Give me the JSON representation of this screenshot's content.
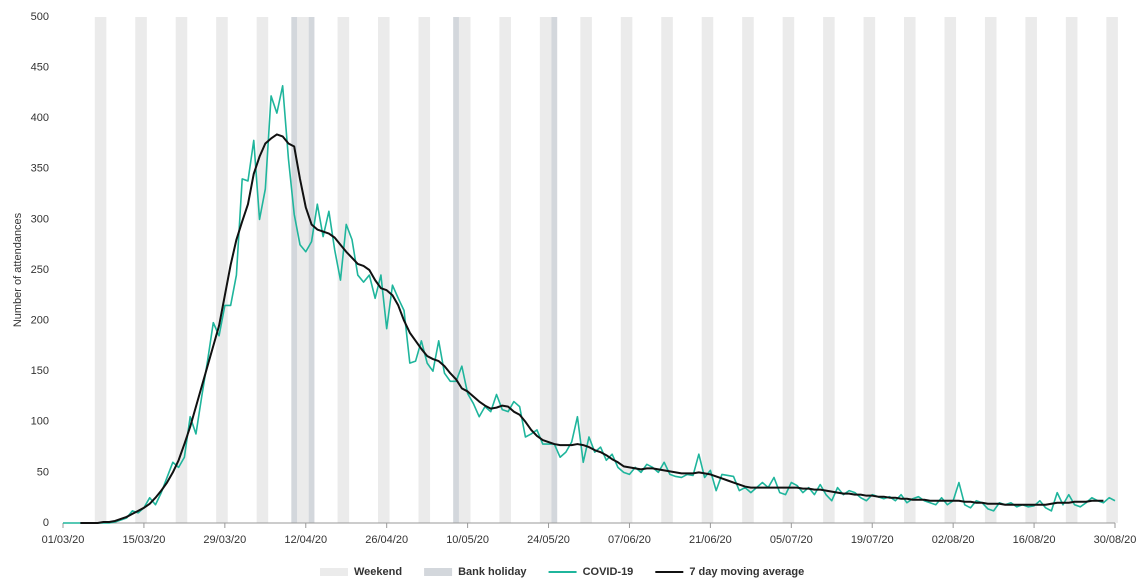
{
  "chart_data": {
    "type": "line",
    "y_label": "Number of attendances",
    "x": [
      "2020-03-01",
      "2020-03-02",
      "2020-03-03",
      "2020-03-04",
      "2020-03-05",
      "2020-03-06",
      "2020-03-07",
      "2020-03-08",
      "2020-03-09",
      "2020-03-10",
      "2020-03-11",
      "2020-03-12",
      "2020-03-13",
      "2020-03-14",
      "2020-03-15",
      "2020-03-16",
      "2020-03-17",
      "2020-03-18",
      "2020-03-19",
      "2020-03-20",
      "2020-03-21",
      "2020-03-22",
      "2020-03-23",
      "2020-03-24",
      "2020-03-25",
      "2020-03-26",
      "2020-03-27",
      "2020-03-28",
      "2020-03-29",
      "2020-03-30",
      "2020-03-31",
      "2020-04-01",
      "2020-04-02",
      "2020-04-03",
      "2020-04-04",
      "2020-04-05",
      "2020-04-06",
      "2020-04-07",
      "2020-04-08",
      "2020-04-09",
      "2020-04-10",
      "2020-04-11",
      "2020-04-12",
      "2020-04-13",
      "2020-04-14",
      "2020-04-15",
      "2020-04-16",
      "2020-04-17",
      "2020-04-18",
      "2020-04-19",
      "2020-04-20",
      "2020-04-21",
      "2020-04-22",
      "2020-04-23",
      "2020-04-24",
      "2020-04-25",
      "2020-04-26",
      "2020-04-27",
      "2020-04-28",
      "2020-04-29",
      "2020-04-30",
      "2020-05-01",
      "2020-05-02",
      "2020-05-03",
      "2020-05-04",
      "2020-05-05",
      "2020-05-06",
      "2020-05-07",
      "2020-05-08",
      "2020-05-09",
      "2020-05-10",
      "2020-05-11",
      "2020-05-12",
      "2020-05-13",
      "2020-05-14",
      "2020-05-15",
      "2020-05-16",
      "2020-05-17",
      "2020-05-18",
      "2020-05-19",
      "2020-05-20",
      "2020-05-21",
      "2020-05-22",
      "2020-05-23",
      "2020-05-24",
      "2020-05-25",
      "2020-05-26",
      "2020-05-27",
      "2020-05-28",
      "2020-05-29",
      "2020-05-30",
      "2020-05-31",
      "2020-06-01",
      "2020-06-02",
      "2020-06-03",
      "2020-06-04",
      "2020-06-05",
      "2020-06-06",
      "2020-06-07",
      "2020-06-08",
      "2020-06-09",
      "2020-06-10",
      "2020-06-11",
      "2020-06-12",
      "2020-06-13",
      "2020-06-14",
      "2020-06-15",
      "2020-06-16",
      "2020-06-17",
      "2020-06-18",
      "2020-06-19",
      "2020-06-20",
      "2020-06-21",
      "2020-06-22",
      "2020-06-23",
      "2020-06-24",
      "2020-06-25",
      "2020-06-26",
      "2020-06-27",
      "2020-06-28",
      "2020-06-29",
      "2020-06-30",
      "2020-07-01",
      "2020-07-02",
      "2020-07-03",
      "2020-07-04",
      "2020-07-05",
      "2020-07-06",
      "2020-07-07",
      "2020-07-08",
      "2020-07-09",
      "2020-07-10",
      "2020-07-11",
      "2020-07-12",
      "2020-07-13",
      "2020-07-14",
      "2020-07-15",
      "2020-07-16",
      "2020-07-17",
      "2020-07-18",
      "2020-07-19",
      "2020-07-20",
      "2020-07-21",
      "2020-07-22",
      "2020-07-23",
      "2020-07-24",
      "2020-07-25",
      "2020-07-26",
      "2020-07-27",
      "2020-07-28",
      "2020-07-29",
      "2020-07-30",
      "2020-07-31",
      "2020-08-01",
      "2020-08-02",
      "2020-08-03",
      "2020-08-04",
      "2020-08-05",
      "2020-08-06",
      "2020-08-07",
      "2020-08-08",
      "2020-08-09",
      "2020-08-10",
      "2020-08-11",
      "2020-08-12",
      "2020-08-13",
      "2020-08-14",
      "2020-08-15",
      "2020-08-16",
      "2020-08-17",
      "2020-08-18",
      "2020-08-19",
      "2020-08-20",
      "2020-08-21",
      "2020-08-22",
      "2020-08-23",
      "2020-08-24",
      "2020-08-25",
      "2020-08-26",
      "2020-08-27",
      "2020-08-28",
      "2020-08-29",
      "2020-08-30"
    ],
    "series": [
      {
        "name": "COVID-19",
        "color": "#1fb59c",
        "values": [
          0,
          0,
          0,
          0,
          0,
          0,
          0,
          0,
          0,
          1,
          3,
          5,
          12,
          10,
          15,
          25,
          18,
          30,
          45,
          60,
          55,
          65,
          105,
          88,
          125,
          160,
          198,
          185,
          215,
          215,
          245,
          340,
          338,
          378,
          300,
          330,
          422,
          405,
          432,
          360,
          305,
          275,
          268,
          278,
          315,
          283,
          308,
          270,
          240,
          295,
          280,
          245,
          238,
          245,
          222,
          245,
          192,
          235,
          222,
          210,
          158,
          160,
          180,
          158,
          150,
          180,
          148,
          140,
          140,
          155,
          128,
          118,
          105,
          115,
          110,
          127,
          112,
          110,
          120,
          115,
          85,
          88,
          92,
          78,
          78,
          78,
          65,
          70,
          80,
          105,
          60,
          85,
          70,
          75,
          62,
          68,
          55,
          50,
          48,
          55,
          50,
          58,
          55,
          50,
          60,
          48,
          46,
          45,
          48,
          47,
          68,
          45,
          52,
          32,
          48,
          47,
          46,
          32,
          35,
          30,
          35,
          40,
          35,
          45,
          30,
          28,
          40,
          37,
          30,
          35,
          28,
          38,
          28,
          22,
          35,
          28,
          32,
          30,
          25,
          22,
          28,
          26,
          24,
          26,
          22,
          28,
          20,
          24,
          26,
          22,
          20,
          18,
          25,
          18,
          22,
          40,
          18,
          15,
          22,
          20,
          14,
          12,
          20,
          18,
          20,
          16,
          18,
          16,
          17,
          22,
          15,
          12,
          30,
          18,
          28,
          18,
          16,
          20,
          25,
          22,
          20,
          25,
          22
        ]
      },
      {
        "name": "7 day moving average",
        "color": "#111111",
        "values": [
          null,
          null,
          null,
          0,
          0,
          0,
          0,
          1,
          1,
          2,
          4,
          6,
          9,
          12,
          15,
          19,
          25,
          32,
          40,
          50,
          62,
          78,
          95,
          115,
          135,
          155,
          175,
          195,
          225,
          255,
          280,
          298,
          315,
          345,
          362,
          375,
          380,
          384,
          382,
          375,
          372,
          340,
          312,
          295,
          290,
          288,
          286,
          282,
          275,
          268,
          262,
          256,
          254,
          250,
          240,
          232,
          230,
          225,
          215,
          200,
          188,
          180,
          172,
          165,
          162,
          160,
          155,
          148,
          142,
          133,
          130,
          125,
          120,
          116,
          113,
          114,
          116,
          115,
          110,
          107,
          100,
          92,
          86,
          82,
          80,
          78,
          77,
          77,
          77,
          78,
          77,
          75,
          72,
          70,
          67,
          63,
          60,
          56,
          55,
          54,
          53,
          54,
          54,
          53,
          52,
          51,
          50,
          49,
          49,
          49,
          50,
          49,
          48,
          46,
          44,
          42,
          40,
          38,
          36,
          35,
          35,
          35,
          35,
          35,
          35,
          35,
          35,
          35,
          34,
          34,
          33,
          33,
          32,
          31,
          30,
          29,
          29,
          28,
          28,
          27,
          27,
          26,
          26,
          25,
          25,
          24,
          24,
          23,
          23,
          23,
          22,
          22,
          22,
          22,
          22,
          22,
          21,
          21,
          20,
          20,
          19,
          19,
          19,
          18,
          18,
          18,
          18,
          18,
          18,
          18,
          18,
          19,
          20,
          20,
          20,
          21,
          21,
          21,
          22,
          22,
          22,
          null,
          null
        ]
      }
    ],
    "bands": [
      {
        "name": "Weekend",
        "color": "#ebebeb",
        "ranges": [
          [
            "2020-03-07",
            "2020-03-08"
          ],
          [
            "2020-03-14",
            "2020-03-15"
          ],
          [
            "2020-03-21",
            "2020-03-22"
          ],
          [
            "2020-03-28",
            "2020-03-29"
          ],
          [
            "2020-04-04",
            "2020-04-05"
          ],
          [
            "2020-04-11",
            "2020-04-12"
          ],
          [
            "2020-04-18",
            "2020-04-19"
          ],
          [
            "2020-04-25",
            "2020-04-26"
          ],
          [
            "2020-05-02",
            "2020-05-03"
          ],
          [
            "2020-05-09",
            "2020-05-10"
          ],
          [
            "2020-05-16",
            "2020-05-17"
          ],
          [
            "2020-05-23",
            "2020-05-24"
          ],
          [
            "2020-05-30",
            "2020-05-31"
          ],
          [
            "2020-06-06",
            "2020-06-07"
          ],
          [
            "2020-06-13",
            "2020-06-14"
          ],
          [
            "2020-06-20",
            "2020-06-21"
          ],
          [
            "2020-06-27",
            "2020-06-28"
          ],
          [
            "2020-07-04",
            "2020-07-05"
          ],
          [
            "2020-07-11",
            "2020-07-12"
          ],
          [
            "2020-07-18",
            "2020-07-19"
          ],
          [
            "2020-07-25",
            "2020-07-26"
          ],
          [
            "2020-08-01",
            "2020-08-02"
          ],
          [
            "2020-08-08",
            "2020-08-09"
          ],
          [
            "2020-08-15",
            "2020-08-16"
          ],
          [
            "2020-08-22",
            "2020-08-23"
          ],
          [
            "2020-08-29",
            "2020-08-30"
          ]
        ]
      },
      {
        "name": "Bank holiday",
        "color": "#d3d7dc",
        "ranges": [
          [
            "2020-04-10",
            "2020-04-10"
          ],
          [
            "2020-04-13",
            "2020-04-13"
          ],
          [
            "2020-05-08",
            "2020-05-08"
          ],
          [
            "2020-05-25",
            "2020-05-25"
          ]
        ]
      }
    ],
    "xlim": [
      "2020-03-01",
      "2020-08-30"
    ],
    "xticks": [
      {
        "value": "2020-03-01",
        "label": "01/03/20"
      },
      {
        "value": "2020-03-15",
        "label": "15/03/20"
      },
      {
        "value": "2020-03-29",
        "label": "29/03/20"
      },
      {
        "value": "2020-04-12",
        "label": "12/04/20"
      },
      {
        "value": "2020-04-26",
        "label": "26/04/20"
      },
      {
        "value": "2020-05-10",
        "label": "10/05/20"
      },
      {
        "value": "2020-05-24",
        "label": "24/05/20"
      },
      {
        "value": "2020-06-07",
        "label": "07/06/20"
      },
      {
        "value": "2020-06-21",
        "label": "21/06/20"
      },
      {
        "value": "2020-07-05",
        "label": "05/07/20"
      },
      {
        "value": "2020-07-19",
        "label": "19/07/20"
      },
      {
        "value": "2020-08-02",
        "label": "02/08/20"
      },
      {
        "value": "2020-08-16",
        "label": "16/08/20"
      },
      {
        "value": "2020-08-30",
        "label": "30/08/20"
      }
    ],
    "ylim": [
      0,
      500
    ],
    "yticks": [
      0,
      50,
      100,
      150,
      200,
      250,
      300,
      350,
      400,
      450,
      500
    ]
  }
}
